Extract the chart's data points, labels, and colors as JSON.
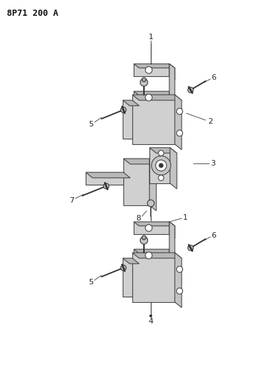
{
  "title": "8P71 200 A",
  "background_color": "#ffffff",
  "fig_width": 4.07,
  "fig_height": 5.33,
  "dpi": 100,
  "face_color": "#d8d8d8",
  "edge_color": "#444444",
  "dark_color": "#333333",
  "label_color": "#222222"
}
